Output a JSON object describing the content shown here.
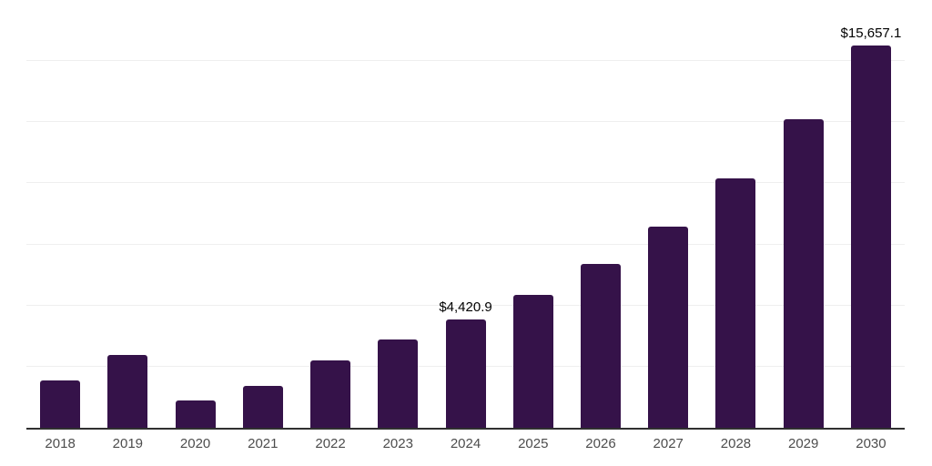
{
  "chart_data": {
    "type": "bar",
    "title": "",
    "xlabel": "",
    "ylabel": "",
    "categories": [
      "2018",
      "2019",
      "2020",
      "2021",
      "2022",
      "2023",
      "2024",
      "2025",
      "2026",
      "2027",
      "2028",
      "2029",
      "2030"
    ],
    "values": [
      1920,
      2980,
      1100,
      1720,
      2750,
      3610,
      4420.9,
      5450,
      6690,
      8240,
      10210,
      12630,
      15657.1
    ],
    "data_labels": [
      "",
      "",
      "",
      "",
      "",
      "",
      "$4,420.9",
      "",
      "",
      "",
      "",
      "",
      "$15,657.1"
    ],
    "ylim": [
      0,
      17500
    ],
    "gridline_step": 2500,
    "grid": "horizontal-only",
    "legend": "none",
    "y_axis_tick_labels": "none",
    "bar_color": "#351249",
    "axis_line_color": "#303030",
    "gridline_color": "#efefef",
    "x_tick_label_color": "#4d4d4d",
    "data_label_color": "#000000",
    "background_color": "#ffffff"
  }
}
